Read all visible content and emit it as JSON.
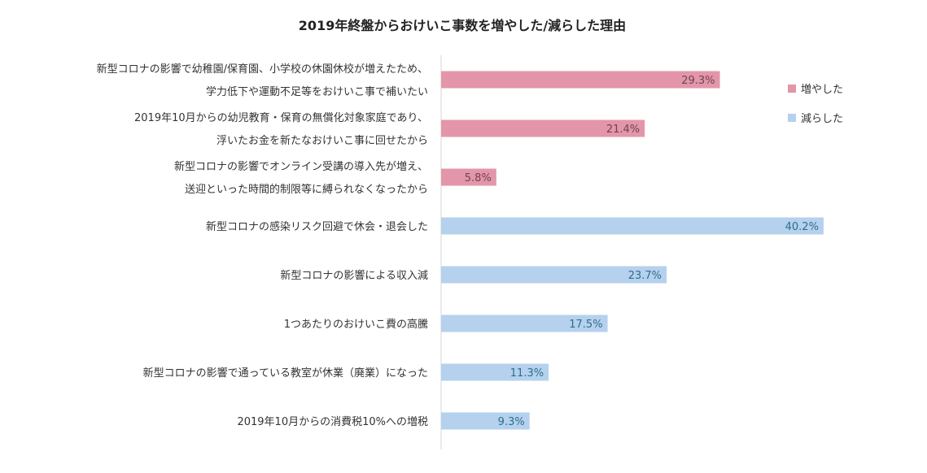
{
  "colors": {
    "increase": "#E396A9",
    "decrease": "#B5D1EE",
    "increase_text": "#6E4452",
    "decrease_text": "#2F6E8C",
    "axis": "#D6D6D6"
  },
  "chart_data": {
    "type": "bar",
    "orientation": "horizontal",
    "title": "2019年終盤からおけいこ事数を増やした/減らした理由",
    "xlabel": "",
    "ylabel": "",
    "xlim": [
      0,
      42
    ],
    "grid": false,
    "legend_position": "right",
    "legend": [
      {
        "name": "増やした",
        "color": "#E396A9"
      },
      {
        "name": "減らした",
        "color": "#B5D1EE"
      }
    ],
    "categories": [
      {
        "lines": [
          "新型コロナの影響で幼稚園/保育園、小学校の休園休校が増えたため、",
          "学力低下や運動不足等をおけいこ事で補いたい"
        ],
        "value": 29.3,
        "label": "29.3%",
        "series": "増やした"
      },
      {
        "lines": [
          "2019年10月からの幼児教育・保育の無償化対象家庭であり、",
          "浮いたお金を新たなおけいこ事に回せたから"
        ],
        "value": 21.4,
        "label": "21.4%",
        "series": "増やした"
      },
      {
        "lines": [
          "新型コロナの影響でオンライン受講の導入先が増え、",
          "送迎といった時間的制限等に縛られなくなったから"
        ],
        "value": 5.8,
        "label": "5.8%",
        "series": "増やした"
      },
      {
        "lines": [
          "新型コロナの感染リスク回避で休会・退会した"
        ],
        "value": 40.2,
        "label": "40.2%",
        "series": "減らした"
      },
      {
        "lines": [
          "新型コロナの影響による収入減"
        ],
        "value": 23.7,
        "label": "23.7%",
        "series": "減らした"
      },
      {
        "lines": [
          "1つあたりのおけいこ費の高騰"
        ],
        "value": 17.5,
        "label": "17.5%",
        "series": "減らした"
      },
      {
        "lines": [
          "新型コロナの影響で通っている教室が休業（廃業）になった"
        ],
        "value": 11.3,
        "label": "11.3%",
        "series": "減らした"
      },
      {
        "lines": [
          "2019年10月からの消費税10%への増税"
        ],
        "value": 9.3,
        "label": "9.3%",
        "series": "減らした"
      }
    ]
  }
}
